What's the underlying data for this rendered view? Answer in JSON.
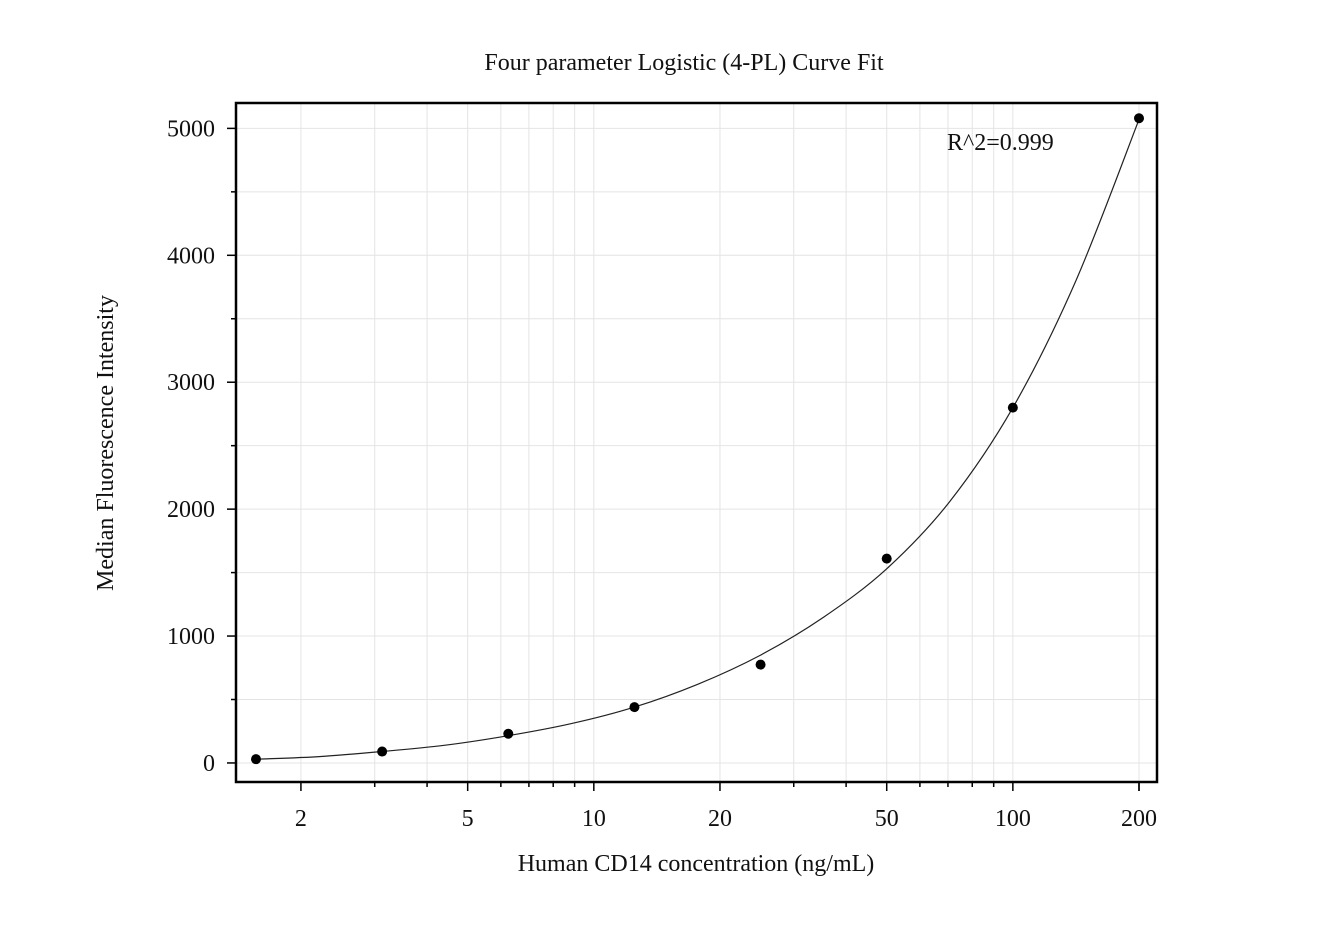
{
  "chart_data": {
    "type": "scatter",
    "title": "Four parameter Logistic (4-PL) Curve Fit",
    "xlabel": "Human CD14 concentration (ng/mL)",
    "ylabel": "Median Fluorescence Intensity",
    "annotation": "R^2=0.999",
    "x_scale": "log",
    "xlim": [
      1.5625,
      200
    ],
    "ylim": [
      -150,
      5200
    ],
    "x_ticks": [
      {
        "value": 2,
        "label": "2"
      },
      {
        "value": 5,
        "label": "5"
      },
      {
        "value": 10,
        "label": "10"
      },
      {
        "value": 20,
        "label": "20"
      },
      {
        "value": 50,
        "label": "50"
      },
      {
        "value": 100,
        "label": "100"
      },
      {
        "value": 200,
        "label": "200"
      }
    ],
    "y_ticks": [
      {
        "value": 0,
        "label": "0"
      },
      {
        "value": 1000,
        "label": "1000"
      },
      {
        "value": 2000,
        "label": "2000"
      },
      {
        "value": 3000,
        "label": "3000"
      },
      {
        "value": 4000,
        "label": "4000"
      },
      {
        "value": 5000,
        "label": "5000"
      }
    ],
    "grid": true,
    "points": [
      {
        "x": 1.5625,
        "y": 30
      },
      {
        "x": 3.125,
        "y": 90
      },
      {
        "x": 6.25,
        "y": 230
      },
      {
        "x": 12.5,
        "y": 440
      },
      {
        "x": 25,
        "y": 775
      },
      {
        "x": 50,
        "y": 1610
      },
      {
        "x": 100,
        "y": 2800
      },
      {
        "x": 200,
        "y": 5080
      }
    ],
    "fit_curve": {
      "model": "4-PL",
      "samples": [
        {
          "x": 1.5625,
          "y": 30
        },
        {
          "x": 2.21,
          "y": 50
        },
        {
          "x": 3.125,
          "y": 90
        },
        {
          "x": 4.42,
          "y": 140
        },
        {
          "x": 6.25,
          "y": 215
        },
        {
          "x": 8.84,
          "y": 310
        },
        {
          "x": 12.5,
          "y": 440
        },
        {
          "x": 17.7,
          "y": 620
        },
        {
          "x": 25,
          "y": 850
        },
        {
          "x": 35.4,
          "y": 1150
        },
        {
          "x": 50,
          "y": 1530
        },
        {
          "x": 70.7,
          "y": 2060
        },
        {
          "x": 100,
          "y": 2800
        },
        {
          "x": 141.4,
          "y": 3800
        },
        {
          "x": 200,
          "y": 5070
        }
      ]
    },
    "colors": {
      "points": "#000000",
      "curve": "#222222",
      "grid": "#e4e4e4",
      "frame": "#000000"
    }
  }
}
